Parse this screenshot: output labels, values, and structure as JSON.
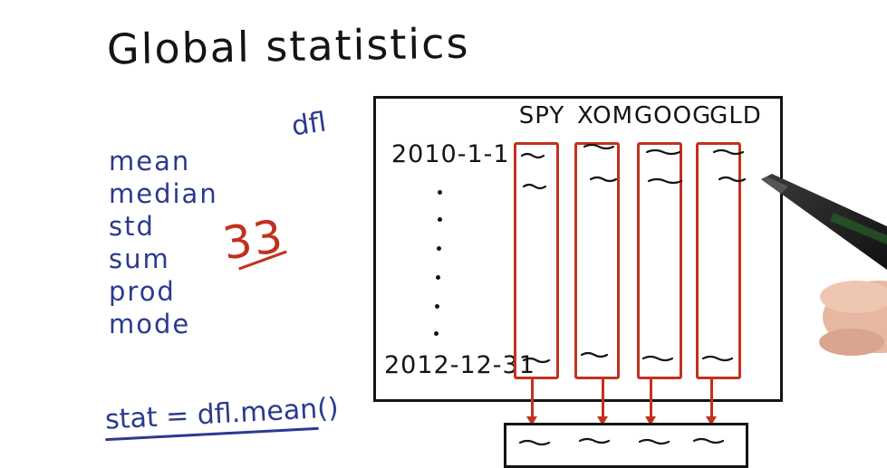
{
  "title": "Global statistics",
  "dataframe_label": "dfl",
  "statistics": [
    "mean",
    "median",
    "std",
    "sum",
    "prod",
    "mode"
  ],
  "statistic_count": "33",
  "code_example": "stat = dfl.mean()",
  "table": {
    "columns": [
      "SPY",
      "XOM",
      "GOOG",
      "GLD"
    ],
    "first_row_label": "2010-1-1",
    "last_row_label": "2012-12-31"
  },
  "colors": {
    "ink_black": "#141414",
    "ink_blue": "#2b3a8f",
    "ink_red": "#c0321e"
  }
}
